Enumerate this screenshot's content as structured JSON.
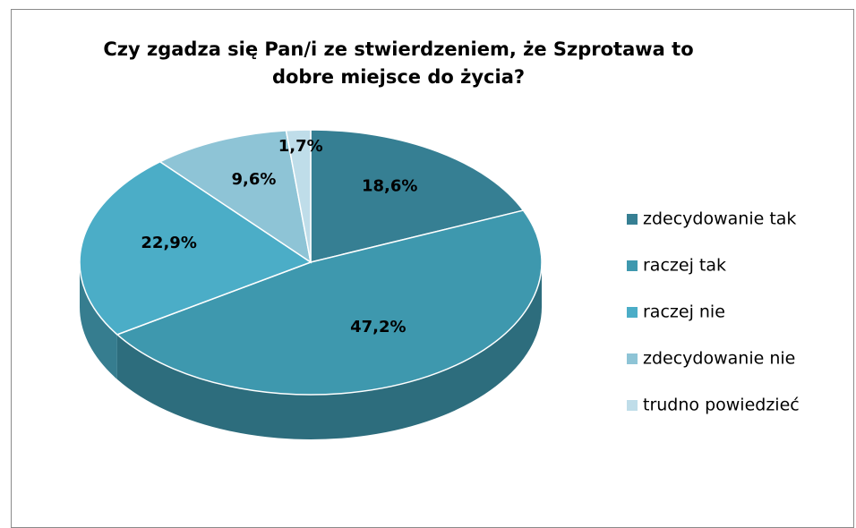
{
  "chart_data": {
    "type": "pie3d",
    "title": "Czy zgadza się Pan/i ze stwierdzeniem, że Szprotawa to dobre miejsce do życia?",
    "categories": [
      "zdecydowanie tak",
      "raczej tak",
      "raczej nie",
      "zdecydowanie nie",
      "trudno powiedzieć"
    ],
    "values": [
      18.6,
      47.2,
      22.9,
      9.6,
      1.7
    ],
    "value_labels": [
      "18,6%",
      "47,2%",
      "22,9%",
      "9,6%",
      "1,7%"
    ],
    "colors": [
      "#367f93",
      "#3e98ae",
      "#4badc7",
      "#8ec4d6",
      "#bfdde9"
    ],
    "legend": "right"
  }
}
